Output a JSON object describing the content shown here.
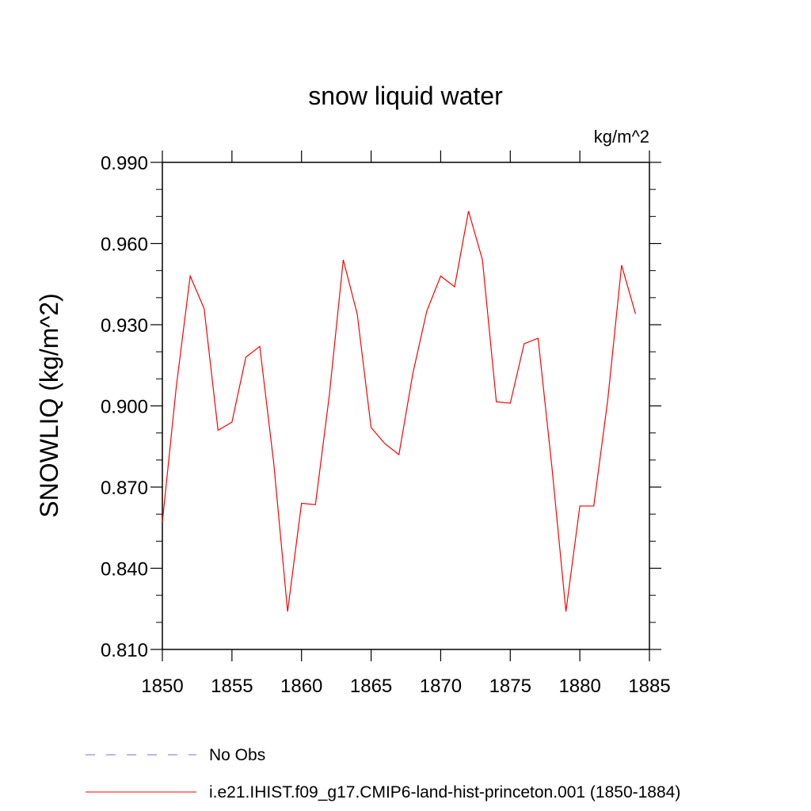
{
  "chart_data": {
    "type": "line",
    "title": "snow liquid water",
    "units_label": "kg/m^2",
    "ylabel": "SNOWLIQ  (kg/m^2)",
    "xlabel": "",
    "xlim": [
      1850,
      1885
    ],
    "ylim": [
      0.81,
      0.99
    ],
    "x_ticks": [
      1850,
      1855,
      1860,
      1865,
      1870,
      1875,
      1880,
      1885
    ],
    "x_tick_labels": [
      "1850",
      "1855",
      "1860",
      "1865",
      "1870",
      "1875",
      "1880",
      "1885"
    ],
    "y_ticks": [
      0.81,
      0.84,
      0.87,
      0.9,
      0.93,
      0.96,
      0.99
    ],
    "y_tick_labels": [
      "0.810",
      "0.840",
      "0.870",
      "0.900",
      "0.930",
      "0.960",
      "0.990"
    ],
    "grid": false,
    "series": [
      {
        "name": "i.e21.IHIST.f09_g17.CMIP6-land-hist-princeton.001 (1850-1884)",
        "color": "#ff0000",
        "x": [
          1850,
          1851,
          1852,
          1853,
          1854,
          1855,
          1856,
          1857,
          1858,
          1859,
          1860,
          1861,
          1862,
          1863,
          1864,
          1865,
          1866,
          1867,
          1868,
          1869,
          1870,
          1871,
          1872,
          1873,
          1874,
          1875,
          1876,
          1877,
          1878,
          1879,
          1880,
          1881,
          1882,
          1883,
          1884
        ],
        "y": [
          0.857,
          0.907,
          0.948,
          0.936,
          0.891,
          0.894,
          0.918,
          0.922,
          0.879,
          0.824,
          0.864,
          0.8635,
          0.904,
          0.954,
          0.934,
          0.892,
          0.886,
          0.882,
          0.912,
          0.935,
          0.948,
          0.944,
          0.972,
          0.954,
          0.9015,
          0.901,
          0.923,
          0.925,
          0.877,
          0.824,
          0.863,
          0.863,
          0.902,
          0.952,
          0.934
        ]
      }
    ],
    "legend": {
      "placement": "bottom",
      "entries": [
        {
          "label": "No Obs",
          "color": "#7b68ee",
          "style": "dashed"
        },
        {
          "label": "i.e21.IHIST.f09_g17.CMIP6-land-hist-princeton.001 (1850-1884)",
          "color": "#ff0000",
          "style": "solid"
        }
      ]
    }
  }
}
